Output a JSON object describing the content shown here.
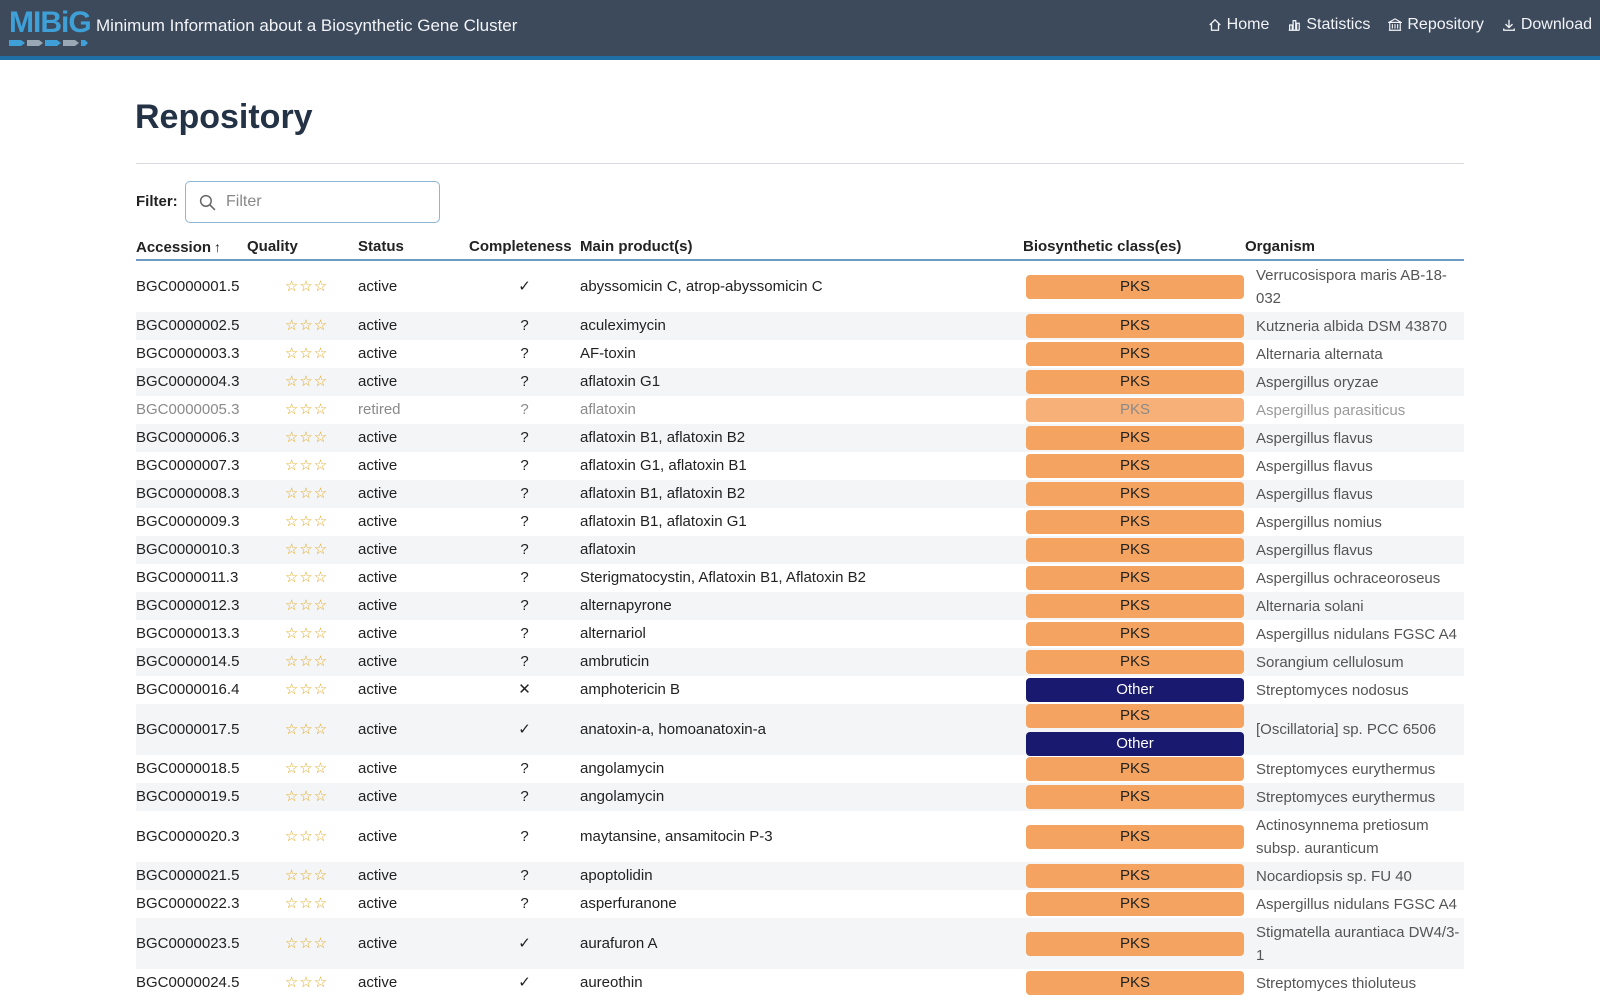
{
  "navbar": {
    "logo_text": "MIBiG",
    "title": "Minimum Information about a Biosynthetic Gene Cluster",
    "links": [
      {
        "label": "Home",
        "icon": "home-icon"
      },
      {
        "label": "Statistics",
        "icon": "bar-chart-icon"
      },
      {
        "label": "Repository",
        "icon": "building-icon"
      },
      {
        "label": "Download",
        "icon": "download-icon"
      }
    ]
  },
  "page": {
    "title": "Repository",
    "filter_label": "Filter:",
    "filter_placeholder": "Filter",
    "filter_value": ""
  },
  "table": {
    "headers": {
      "accession": "Accession",
      "sort_indicator": "↑",
      "quality": "Quality",
      "status": "Status",
      "completeness": "Completeness",
      "products": "Main product(s)",
      "classes": "Biosynthetic class(es)",
      "organism": "Organism"
    },
    "colors": {
      "PKS": "#f4a460",
      "Other": "#191970",
      "stars": "#e3a821"
    },
    "rows": [
      {
        "accession": "BGC0000001.5",
        "quality": "☆☆☆",
        "status": "active",
        "completeness": "✓",
        "products": "abyssomicin C, atrop-abyssomicin C",
        "classes": [
          "PKS"
        ],
        "organism": "Verrucosispora maris AB-18-032"
      },
      {
        "accession": "BGC0000002.5",
        "quality": "☆☆☆",
        "status": "active",
        "completeness": "?",
        "products": "aculeximycin",
        "classes": [
          "PKS"
        ],
        "organism": "Kutzneria albida DSM 43870"
      },
      {
        "accession": "BGC0000003.3",
        "quality": "☆☆☆",
        "status": "active",
        "completeness": "?",
        "products": "AF-toxin",
        "classes": [
          "PKS"
        ],
        "organism": "Alternaria alternata"
      },
      {
        "accession": "BGC0000004.3",
        "quality": "☆☆☆",
        "status": "active",
        "completeness": "?",
        "products": "aflatoxin G1",
        "classes": [
          "PKS"
        ],
        "organism": "Aspergillus oryzae"
      },
      {
        "accession": "BGC0000005.3",
        "quality": "☆☆☆",
        "status": "retired",
        "completeness": "?",
        "products": "aflatoxin",
        "classes": [
          "PKS"
        ],
        "organism": "Aspergillus parasiticus"
      },
      {
        "accession": "BGC0000006.3",
        "quality": "☆☆☆",
        "status": "active",
        "completeness": "?",
        "products": "aflatoxin B1, aflatoxin B2",
        "classes": [
          "PKS"
        ],
        "organism": "Aspergillus flavus"
      },
      {
        "accession": "BGC0000007.3",
        "quality": "☆☆☆",
        "status": "active",
        "completeness": "?",
        "products": "aflatoxin G1, aflatoxin B1",
        "classes": [
          "PKS"
        ],
        "organism": "Aspergillus flavus"
      },
      {
        "accession": "BGC0000008.3",
        "quality": "☆☆☆",
        "status": "active",
        "completeness": "?",
        "products": "aflatoxin B1, aflatoxin B2",
        "classes": [
          "PKS"
        ],
        "organism": "Aspergillus flavus"
      },
      {
        "accession": "BGC0000009.3",
        "quality": "☆☆☆",
        "status": "active",
        "completeness": "?",
        "products": "aflatoxin B1, aflatoxin G1",
        "classes": [
          "PKS"
        ],
        "organism": "Aspergillus nomius"
      },
      {
        "accession": "BGC0000010.3",
        "quality": "☆☆☆",
        "status": "active",
        "completeness": "?",
        "products": "aflatoxin",
        "classes": [
          "PKS"
        ],
        "organism": "Aspergillus flavus"
      },
      {
        "accession": "BGC0000011.3",
        "quality": "☆☆☆",
        "status": "active",
        "completeness": "?",
        "products": "Sterigmatocystin, Aflatoxin B1, Aflatoxin B2",
        "classes": [
          "PKS"
        ],
        "organism": "Aspergillus ochraceoroseus"
      },
      {
        "accession": "BGC0000012.3",
        "quality": "☆☆☆",
        "status": "active",
        "completeness": "?",
        "products": "alternapyrone",
        "classes": [
          "PKS"
        ],
        "organism": "Alternaria solani"
      },
      {
        "accession": "BGC0000013.3",
        "quality": "☆☆☆",
        "status": "active",
        "completeness": "?",
        "products": "alternariol",
        "classes": [
          "PKS"
        ],
        "organism": "Aspergillus nidulans FGSC A4"
      },
      {
        "accession": "BGC0000014.5",
        "quality": "☆☆☆",
        "status": "active",
        "completeness": "?",
        "products": "ambruticin",
        "classes": [
          "PKS"
        ],
        "organism": "Sorangium cellulosum"
      },
      {
        "accession": "BGC0000016.4",
        "quality": "☆☆☆",
        "status": "active",
        "completeness": "✕",
        "products": "amphotericin B",
        "classes": [
          "Other"
        ],
        "organism": "Streptomyces nodosus"
      },
      {
        "accession": "BGC0000017.5",
        "quality": "☆☆☆",
        "status": "active",
        "completeness": "✓",
        "products": "anatoxin-a, homoanatoxin-a",
        "classes": [
          "PKS",
          "Other"
        ],
        "organism": "[Oscillatoria] sp. PCC 6506"
      },
      {
        "accession": "BGC0000018.5",
        "quality": "☆☆☆",
        "status": "active",
        "completeness": "?",
        "products": "angolamycin",
        "classes": [
          "PKS"
        ],
        "organism": "Streptomyces eurythermus"
      },
      {
        "accession": "BGC0000019.5",
        "quality": "☆☆☆",
        "status": "active",
        "completeness": "?",
        "products": "angolamycin",
        "classes": [
          "PKS"
        ],
        "organism": "Streptomyces eurythermus"
      },
      {
        "accession": "BGC0000020.3",
        "quality": "☆☆☆",
        "status": "active",
        "completeness": "?",
        "products": "maytansine, ansamitocin P-3",
        "classes": [
          "PKS"
        ],
        "organism": "Actinosynnema pretiosum subsp. auranticum"
      },
      {
        "accession": "BGC0000021.5",
        "quality": "☆☆☆",
        "status": "active",
        "completeness": "?",
        "products": "apoptolidin",
        "classes": [
          "PKS"
        ],
        "organism": "Nocardiopsis sp. FU 40"
      },
      {
        "accession": "BGC0000022.3",
        "quality": "☆☆☆",
        "status": "active",
        "completeness": "?",
        "products": "asperfuranone",
        "classes": [
          "PKS"
        ],
        "organism": "Aspergillus nidulans FGSC A4"
      },
      {
        "accession": "BGC0000023.5",
        "quality": "☆☆☆",
        "status": "active",
        "completeness": "✓",
        "products": "aurafuron A",
        "classes": [
          "PKS"
        ],
        "organism": "Stigmatella aurantiaca DW4/3-1"
      },
      {
        "accession": "BGC0000024.5",
        "quality": "☆☆☆",
        "status": "active",
        "completeness": "✓",
        "products": "aureothin",
        "classes": [
          "PKS"
        ],
        "organism": "Streptomyces thioluteus"
      }
    ]
  }
}
